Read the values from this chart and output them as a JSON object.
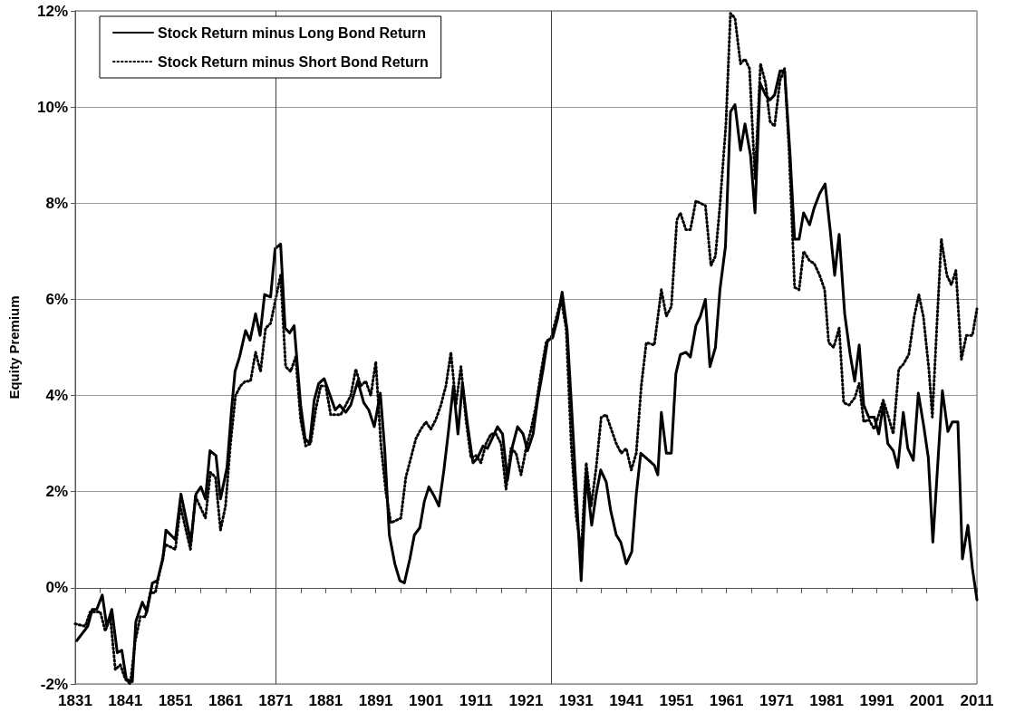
{
  "chart_data": {
    "type": "line",
    "ylabel": "Equity Premium",
    "legend": "top left",
    "grid": "y",
    "marker": "none",
    "xlim": [
      1831,
      2011
    ],
    "xticks": [
      1831,
      {
        "value": 1836,
        "label": null
      },
      1841,
      {
        "value": 1846,
        "label": null
      },
      1851,
      {
        "value": 1856,
        "label": null
      },
      1861,
      {
        "value": 1866,
        "label": null
      },
      1871,
      {
        "value": 1876,
        "label": null
      },
      1881,
      {
        "value": 1886,
        "label": null
      },
      1891,
      {
        "value": 1896,
        "label": null
      },
      1901,
      {
        "value": 1906,
        "label": null
      },
      1911,
      {
        "value": 1916,
        "label": null
      },
      1921,
      {
        "value": 1926,
        "label": null
      },
      1931,
      {
        "value": 1936,
        "label": null
      },
      1941,
      {
        "value": 1946,
        "label": null
      },
      1951,
      {
        "value": 1956,
        "label": null
      },
      1961,
      {
        "value": 1966,
        "label": null
      },
      1971,
      {
        "value": 1976,
        "label": null
      },
      1981,
      {
        "value": 1986,
        "label": null
      },
      1991,
      {
        "value": 1996,
        "label": null
      },
      2001,
      {
        "value": 2006,
        "label": null
      },
      2011
    ],
    "ylim": [
      -2,
      12
    ],
    "yticks": [
      {
        "value": -2,
        "label": "-2%"
      },
      {
        "value": 0,
        "label": "0%"
      },
      {
        "value": 2,
        "label": "2%"
      },
      {
        "value": 4,
        "label": "4%"
      },
      {
        "value": 6,
        "label": "6%"
      },
      {
        "value": 8,
        "label": "8%"
      },
      {
        "value": 10,
        "label": "10%"
      },
      {
        "value": 12,
        "label": "12%"
      }
    ],
    "ref_lines": [
      {
        "axis": "x",
        "value": 1871,
        "label": null,
        "color": "#404040"
      },
      {
        "axis": "x",
        "value": 1926,
        "label": null,
        "color": "#404040"
      }
    ],
    "series": [
      {
        "name": "Stock Return minus Long Bond Return",
        "color": "#000000",
        "line_style": "solid",
        "x": [
          1831.3,
          1833.5,
          1834.4,
          1835.3,
          1836.4,
          1837.3,
          1838.3,
          1839.4,
          1840.3,
          1841.2,
          1842.4,
          1843.1,
          1844.4,
          1845.3,
          1846.4,
          1847.4,
          1848.5,
          1849.1,
          1851,
          1852.1,
          1854.1,
          1855.1,
          1856.1,
          1857,
          1857.9,
          1859.1,
          1860,
          1861.3,
          1862.2,
          1862.9,
          1863.8,
          1865,
          1865.9,
          1867,
          1867.9,
          1868.8,
          1870,
          1870.9,
          1872,
          1872.9,
          1873.8,
          1874.7,
          1876,
          1876.9,
          1877.8,
          1878.7,
          1879.6,
          1880.7,
          1882.9,
          1883.8,
          1885,
          1886,
          1887.4,
          1888.6,
          1889.6,
          1890.7,
          1891.9,
          1892.8,
          1893.7,
          1894.8,
          1895.8,
          1896.7,
          1897.8,
          1898.7,
          1899.8,
          1900.7,
          1901.6,
          1902.7,
          1903.6,
          1904.6,
          1905.5,
          1906.5,
          1907.4,
          1908.3,
          1909.3,
          1910.4,
          1911.3,
          1912.4,
          1913.3,
          1914.2,
          1915.3,
          1916.3,
          1917.3,
          1918.3,
          1919.3,
          1920.4,
          1921.3,
          1922.4,
          1923.3,
          1924.4,
          1925.3,
          1926.3,
          1927.3,
          1928.2,
          1929.2,
          1930.3,
          1932,
          1933,
          1934.1,
          1935,
          1935.9,
          1937,
          1937.9,
          1939,
          1939.9,
          1941,
          1942.1,
          1943,
          1943.9,
          1946.6,
          1947.3,
          1948,
          1949,
          1950,
          1950.9,
          1951.8,
          1952.9,
          1953.8,
          1954.9,
          1955.8,
          1956.8,
          1957.7,
          1958.8,
          1959.7,
          1960.8,
          1961.8,
          1962.7,
          1963.8,
          1964.7,
          1965.8,
          1966.7,
          1967.7,
          1968.8,
          1969.7,
          1970.6,
          1971.7,
          1972.6,
          1973.7,
          1974.6,
          1975.5,
          1976.4,
          1977.6,
          1978.5,
          1979.6,
          1980.7,
          1981.7,
          1982.6,
          1983.5,
          1984.6,
          1985.7,
          1986.6,
          1987.5,
          1988.4,
          1989.4,
          1990.5,
          1991.4,
          1992.3,
          1993.2,
          1994.3,
          1995.2,
          1996.3,
          1997.2,
          1998.3,
          1999.3,
          2000.4,
          2001.3,
          2002.2,
          2004.1,
          2005.2,
          2006.1,
          2007.2,
          2008.1,
          2009.2,
          2010.1,
          2011
        ],
        "values": [
          -1.1,
          -0.8,
          -0.45,
          -0.45,
          -0.15,
          -0.8,
          -0.45,
          -1.35,
          -1.3,
          -1.9,
          -1.95,
          -0.7,
          -0.3,
          -0.5,
          0.1,
          0.15,
          0.6,
          1.2,
          1.0,
          1.95,
          0.95,
          1.95,
          2.1,
          1.85,
          2.85,
          2.75,
          1.85,
          2.5,
          3.7,
          4.5,
          4.8,
          5.35,
          5.15,
          5.7,
          5.25,
          6.1,
          6.05,
          7.05,
          7.15,
          5.4,
          5.3,
          5.45,
          3.8,
          3.1,
          3.0,
          3.9,
          4.25,
          4.35,
          3.7,
          3.8,
          3.65,
          3.8,
          4.3,
          3.85,
          3.7,
          3.35,
          4.05,
          2.85,
          1.1,
          0.5,
          0.15,
          0.1,
          0.6,
          1.1,
          1.25,
          1.8,
          2.1,
          1.9,
          1.7,
          2.45,
          3.25,
          4.2,
          3.2,
          4.25,
          3.4,
          2.6,
          2.7,
          2.95,
          2.9,
          3.1,
          3.35,
          3.2,
          2.25,
          2.95,
          3.35,
          3.2,
          2.85,
          3.2,
          3.9,
          4.55,
          5.15,
          5.2,
          5.6,
          6.15,
          5.35,
          3.35,
          0.15,
          2.35,
          1.3,
          1.95,
          2.45,
          2.2,
          1.6,
          1.1,
          0.95,
          0.5,
          0.75,
          1.95,
          2.8,
          2.55,
          2.35,
          3.65,
          2.8,
          2.8,
          4.45,
          4.85,
          4.9,
          4.8,
          5.45,
          5.65,
          6.0,
          4.6,
          5.0,
          6.2,
          7.1,
          9.9,
          10.05,
          9.1,
          9.65,
          9.0,
          7.8,
          10.5,
          10.25,
          10.15,
          10.25,
          10.75,
          10.75,
          9.0,
          7.25,
          7.25,
          7.8,
          7.55,
          7.9,
          8.2,
          8.4,
          7.45,
          6.5,
          7.35,
          5.7,
          4.85,
          4.3,
          5.05,
          3.8,
          3.55,
          3.55,
          3.2,
          3.8,
          3.0,
          2.85,
          2.5,
          3.65,
          2.9,
          2.65,
          4.05,
          3.35,
          2.7,
          0.95,
          4.1,
          3.25,
          3.45,
          3.45,
          0.6,
          1.3,
          0.4,
          -0.25
        ]
      },
      {
        "name": "Stock Return minus Short Bond Return",
        "color": "#000000",
        "line_style": "dotted",
        "x": [
          1831,
          1833,
          1834,
          1835,
          1836,
          1837,
          1838,
          1839,
          1840,
          1841,
          1842,
          1843,
          1844,
          1845,
          1846,
          1847,
          1848,
          1849,
          1851,
          1852,
          1854,
          1855,
          1857,
          1858,
          1859,
          1860,
          1861,
          1862,
          1863,
          1864,
          1865,
          1866,
          1867,
          1868,
          1869,
          1870,
          1871,
          1872,
          1873,
          1874,
          1875,
          1876,
          1877,
          1878,
          1879,
          1880,
          1881,
          1882,
          1883,
          1884,
          1885,
          1886,
          1887,
          1888,
          1889,
          1890,
          1891,
          1892,
          1893,
          1894,
          1895,
          1896,
          1897,
          1898,
          1899,
          1900,
          1901,
          1902,
          1903,
          1904,
          1905,
          1906,
          1907,
          1908,
          1909,
          1910,
          1911,
          1912,
          1913,
          1914,
          1915,
          1916,
          1917,
          1918,
          1919,
          1920,
          1921,
          1922,
          1923,
          1924,
          1925,
          1926,
          1927,
          1928,
          1929,
          1930,
          1931,
          1932,
          1933,
          1934,
          1935,
          1936,
          1937,
          1938,
          1939,
          1940,
          1941,
          1942,
          1943,
          1944,
          1945,
          1946.6,
          1948,
          1949,
          1950,
          1951.1,
          1951.8,
          1952.9,
          1953.8,
          1954.9,
          1955.8,
          1956.8,
          1957.9,
          1958.8,
          1959.7,
          1960.9,
          1961.8,
          1962.7,
          1963.8,
          1964.7,
          1965.6,
          1966.7,
          1967.8,
          1968.8,
          1969.7,
          1970.6,
          1971.7,
          1972.6,
          1973.5,
          1974.6,
          1975.5,
          1976.4,
          1977.6,
          1978.5,
          1979.6,
          1980.6,
          1981.4,
          1982.4,
          1983.5,
          1984.4,
          1985.5,
          1986.6,
          1987.5,
          1988.4,
          1989.4,
          1990.5,
          1991.4,
          1992.3,
          1993.2,
          1994.3,
          1995.4,
          1996.3,
          1997.4,
          1998.5,
          1999.4,
          2000.3,
          2001.4,
          2002.1,
          2003,
          2003.9,
          2005,
          2005.9,
          2006.8,
          2007.9,
          2008.9,
          2010.1,
          2011
        ],
        "values": [
          -0.75,
          -0.8,
          -0.5,
          -0.5,
          -0.5,
          -0.9,
          -0.6,
          -1.7,
          -1.6,
          -1.9,
          -2.0,
          -1.1,
          -0.6,
          -0.6,
          -0.1,
          -0.1,
          0.4,
          0.9,
          0.8,
          1.7,
          0.8,
          1.9,
          1.45,
          2.4,
          2.3,
          1.2,
          1.7,
          3.0,
          4.0,
          4.2,
          4.3,
          4.3,
          4.9,
          4.5,
          5.4,
          5.5,
          6.0,
          6.5,
          4.6,
          4.5,
          4.8,
          3.5,
          2.95,
          3.0,
          3.7,
          4.2,
          4.2,
          3.6,
          3.6,
          3.6,
          3.8,
          4.0,
          4.55,
          4.2,
          4.3,
          4.0,
          4.7,
          3.0,
          2.0,
          1.35,
          1.4,
          1.45,
          2.3,
          2.7,
          3.1,
          3.3,
          3.45,
          3.3,
          3.5,
          3.8,
          4.2,
          4.9,
          3.8,
          4.6,
          3.5,
          2.7,
          2.75,
          2.6,
          3.0,
          3.2,
          3.2,
          3.0,
          2.05,
          2.9,
          2.8,
          2.35,
          2.9,
          3.3,
          3.8,
          4.5,
          5.1,
          5.2,
          5.6,
          6.0,
          5.4,
          3.0,
          1.5,
          0.75,
          2.6,
          1.7,
          2.5,
          3.55,
          3.6,
          3.3,
          3.0,
          2.8,
          2.9,
          2.45,
          2.8,
          4.2,
          5.1,
          5.05,
          6.2,
          5.65,
          5.85,
          7.65,
          7.8,
          7.45,
          7.45,
          8.05,
          8.0,
          7.95,
          6.7,
          6.9,
          7.95,
          9.65,
          11.95,
          11.85,
          10.9,
          11.0,
          10.8,
          8.5,
          10.9,
          10.5,
          9.7,
          9.6,
          10.55,
          10.8,
          9.1,
          6.25,
          6.2,
          7.0,
          6.8,
          6.75,
          6.5,
          6.2,
          5.1,
          5.0,
          5.4,
          3.85,
          3.8,
          3.95,
          4.25,
          3.45,
          3.5,
          3.3,
          3.6,
          3.9,
          3.6,
          3.2,
          4.55,
          4.65,
          4.85,
          5.65,
          6.1,
          5.65,
          4.55,
          3.55,
          5.45,
          7.25,
          6.5,
          6.3,
          6.6,
          4.75,
          5.25,
          5.25,
          5.8
        ]
      }
    ]
  }
}
